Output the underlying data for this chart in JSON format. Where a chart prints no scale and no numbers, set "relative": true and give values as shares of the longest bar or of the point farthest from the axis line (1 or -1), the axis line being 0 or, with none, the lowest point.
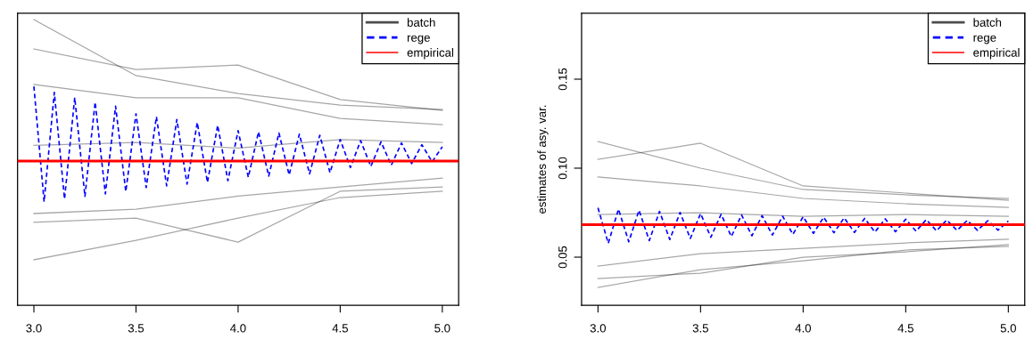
{
  "chart_data": [
    {
      "type": "line",
      "relative": true,
      "tick_labels": "x",
      "legend": "top right",
      "grid": false,
      "xlim": [
        2.92,
        5.08
      ],
      "xticks": [
        {
          "value": 3.0,
          "label": "3.0"
        },
        {
          "value": 3.5,
          "label": "3.5"
        },
        {
          "value": 4.0,
          "label": "4.0"
        },
        {
          "value": 4.5,
          "label": "4.5"
        },
        {
          "value": 5.0,
          "label": "5.0"
        }
      ],
      "series": [
        {
          "name": "batch",
          "color": "#000000",
          "x": [
            3.0,
            3.5,
            4.0,
            4.5,
            5.0
          ],
          "values": [
            1.0,
            0.804,
            0.741,
            0.701,
            0.685
          ]
        },
        {
          "color": "#000000",
          "x": [
            3.0,
            3.5,
            4.0,
            4.5,
            5.0
          ],
          "values": [
            0.897,
            0.825,
            0.841,
            0.72,
            0.682
          ]
        },
        {
          "color": "#000000",
          "x": [
            3.0,
            3.5,
            4.0,
            4.5,
            5.0
          ],
          "values": [
            0.773,
            0.726,
            0.726,
            0.654,
            0.632
          ]
        },
        {
          "color": "#000000",
          "x": [
            3.0,
            3.5,
            4.0,
            4.5,
            5.0
          ],
          "values": [
            0.56,
            0.57,
            0.55,
            0.58,
            0.57
          ]
        },
        {
          "color": "#000000",
          "x": [
            3.0,
            3.5,
            4.0,
            4.5,
            5.0
          ],
          "values": [
            0.321,
            0.336,
            0.382,
            0.414,
            0.445
          ]
        },
        {
          "color": "#000000",
          "x": [
            3.0,
            3.5,
            4.0,
            4.5,
            5.0
          ],
          "values": [
            0.29,
            0.305,
            0.221,
            0.399,
            0.414
          ]
        },
        {
          "color": "#000000",
          "x": [
            3.0,
            3.5,
            4.0,
            4.5,
            5.0
          ],
          "values": [
            0.159,
            0.227,
            0.305,
            0.377,
            0.399
          ]
        },
        {
          "name": "rege",
          "color": "#0000ff",
          "line_style": "dashed",
          "x": [
            3.0,
            3.05,
            3.1,
            3.15,
            3.2,
            3.25,
            3.3,
            3.35,
            3.4,
            3.45,
            3.5,
            3.55,
            3.6,
            3.65,
            3.7,
            3.75,
            3.8,
            3.85,
            3.9,
            3.95,
            4.0,
            4.05,
            4.1,
            4.15,
            4.2,
            4.25,
            4.3,
            4.35,
            4.4,
            4.45,
            4.5,
            4.55,
            4.6,
            4.65,
            4.7,
            4.75,
            4.8,
            4.85,
            4.9,
            4.95,
            5.0
          ],
          "values": [
            0.766,
            0.362,
            0.745,
            0.372,
            0.727,
            0.381,
            0.711,
            0.39,
            0.697,
            0.398,
            0.67,
            0.412,
            0.66,
            0.418,
            0.65,
            0.424,
            0.64,
            0.43,
            0.63,
            0.436,
            0.611,
            0.448,
            0.607,
            0.452,
            0.603,
            0.456,
            0.599,
            0.46,
            0.595,
            0.464,
            0.58,
            0.482,
            0.576,
            0.486,
            0.572,
            0.49,
            0.568,
            0.496,
            0.562,
            0.502,
            0.555
          ]
        }
      ],
      "ref_lines": [
        {
          "axis": "y",
          "value": 0.505,
          "label": "empirical",
          "color": "#ff0000"
        }
      ]
    },
    {
      "type": "line",
      "legend": "top right",
      "grid": false,
      "ylabel": "estimates of asy. var.",
      "xlim": [
        2.92,
        5.08
      ],
      "xticks": [
        {
          "value": 3.0,
          "label": "3.0"
        },
        {
          "value": 3.5,
          "label": "3.5"
        },
        {
          "value": 4.0,
          "label": "4.0"
        },
        {
          "value": 4.5,
          "label": "4.5"
        },
        {
          "value": 5.0,
          "label": "5.0"
        }
      ],
      "ylim": [
        0.023,
        0.187
      ],
      "yticks": [
        0.05,
        {
          "value": 0.1,
          "label": "0.10"
        },
        0.15
      ],
      "series": [
        {
          "name": "batch",
          "color": "#000000",
          "x": [
            3.0,
            3.5,
            4.0,
            4.5,
            5.0
          ],
          "values": [
            0.115,
            0.1,
            0.088,
            0.085,
            0.083
          ]
        },
        {
          "color": "#000000",
          "x": [
            3.0,
            3.5,
            4.0,
            4.5,
            5.0
          ],
          "values": [
            0.105,
            0.114,
            0.09,
            0.086,
            0.082
          ]
        },
        {
          "color": "#000000",
          "x": [
            3.0,
            3.5,
            4.0,
            4.5,
            5.0
          ],
          "values": [
            0.095,
            0.09,
            0.083,
            0.08,
            0.078
          ]
        },
        {
          "color": "#000000",
          "x": [
            3.0,
            3.5,
            4.0,
            4.5,
            5.0
          ],
          "values": [
            0.074,
            0.075,
            0.073,
            0.074,
            0.073
          ]
        },
        {
          "color": "#000000",
          "x": [
            3.0,
            3.5,
            4.0,
            4.5,
            5.0
          ],
          "values": [
            0.045,
            0.052,
            0.055,
            0.058,
            0.06
          ]
        },
        {
          "color": "#000000",
          "x": [
            3.0,
            3.5,
            4.0,
            4.5,
            5.0
          ],
          "values": [
            0.038,
            0.041,
            0.05,
            0.053,
            0.057
          ]
        },
        {
          "color": "#000000",
          "x": [
            3.0,
            3.5,
            4.0,
            4.5,
            5.0
          ],
          "values": [
            0.033,
            0.043,
            0.048,
            0.054,
            0.056
          ]
        },
        {
          "name": "rege",
          "color": "#0000ff",
          "line_style": "dashed",
          "x": [
            3.0,
            3.05,
            3.1,
            3.15,
            3.2,
            3.25,
            3.3,
            3.35,
            3.4,
            3.45,
            3.5,
            3.55,
            3.6,
            3.65,
            3.7,
            3.75,
            3.8,
            3.85,
            3.9,
            3.95,
            4.0,
            4.05,
            4.1,
            4.15,
            4.2,
            4.25,
            4.3,
            4.35,
            4.4,
            4.45,
            4.5,
            4.55,
            4.6,
            4.65,
            4.7,
            4.75,
            4.8,
            4.85,
            4.9,
            4.95,
            5.0
          ],
          "values": [
            0.0777,
            0.0578,
            0.077,
            0.0586,
            0.0763,
            0.0593,
            0.0757,
            0.0599,
            0.0751,
            0.0605,
            0.0745,
            0.0612,
            0.0741,
            0.0616,
            0.0737,
            0.062,
            0.0733,
            0.0624,
            0.073,
            0.0628,
            0.0727,
            0.0634,
            0.0724,
            0.0637,
            0.0721,
            0.0639,
            0.0718,
            0.0641,
            0.0715,
            0.0643,
            0.0713,
            0.0646,
            0.0711,
            0.0648,
            0.0709,
            0.065,
            0.0707,
            0.0651,
            0.0705,
            0.0652,
            0.0703
          ]
        }
      ],
      "ref_lines": [
        {
          "axis": "y",
          "value": 0.0683,
          "label": "empirical",
          "color": "#ff0000"
        }
      ]
    }
  ]
}
